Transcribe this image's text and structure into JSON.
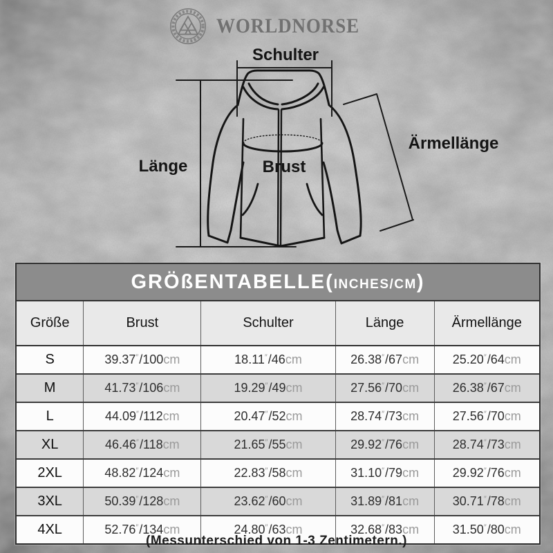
{
  "brand": {
    "name": "WORLDNORSE",
    "logo_icon": "valknut-knot-ring"
  },
  "diagram": {
    "labels": {
      "shoulder": "Schulter",
      "length": "Länge",
      "chest": "Brust",
      "sleeve": "Ärmellänge"
    }
  },
  "size_table": {
    "title_main": "GRÖßENTABELLE(",
    "title_unit": "INCHES/CM",
    "title_close": ")",
    "unit_inch_mark": "″",
    "unit_cm": "cm",
    "headers": [
      "Größe",
      "Brust",
      "Schulter",
      "Länge",
      "Ärmellänge"
    ],
    "rows": [
      {
        "size": "S",
        "measurements": [
          {
            "in": "39.37",
            "cm": "100"
          },
          {
            "in": "18.11",
            "cm": "46"
          },
          {
            "in": "26.38",
            "cm": "67"
          },
          {
            "in": "25.20",
            "cm": "64"
          }
        ]
      },
      {
        "size": "M",
        "measurements": [
          {
            "in": "41.73",
            "cm": "106"
          },
          {
            "in": "19.29",
            "cm": "49"
          },
          {
            "in": "27.56",
            "cm": "70"
          },
          {
            "in": "26.38",
            "cm": "67"
          }
        ]
      },
      {
        "size": "L",
        "measurements": [
          {
            "in": "44.09",
            "cm": "112"
          },
          {
            "in": "20.47",
            "cm": "52"
          },
          {
            "in": "28.74",
            "cm": "73"
          },
          {
            "in": "27.56",
            "cm": "70"
          }
        ]
      },
      {
        "size": "XL",
        "measurements": [
          {
            "in": "46.46",
            "cm": "118"
          },
          {
            "in": "21.65",
            "cm": "55"
          },
          {
            "in": "29.92",
            "cm": "76"
          },
          {
            "in": "28.74",
            "cm": "73"
          }
        ]
      },
      {
        "size": "2XL",
        "measurements": [
          {
            "in": "48.82",
            "cm": "124"
          },
          {
            "in": "22.83",
            "cm": "58"
          },
          {
            "in": "31.10",
            "cm": "79"
          },
          {
            "in": "29.92",
            "cm": "76"
          }
        ]
      },
      {
        "size": "3XL",
        "measurements": [
          {
            "in": "50.39",
            "cm": "128"
          },
          {
            "in": "23.62",
            "cm": "60"
          },
          {
            "in": "31.89",
            "cm": "81"
          },
          {
            "in": "30.71",
            "cm": "78"
          }
        ]
      },
      {
        "size": "4XL",
        "measurements": [
          {
            "in": "52.76",
            "cm": "134"
          },
          {
            "in": "24.80",
            "cm": "63"
          },
          {
            "in": "32.68",
            "cm": "83"
          },
          {
            "in": "31.50",
            "cm": "80"
          }
        ]
      }
    ]
  },
  "footnote": "(Messunterschied von 1-3 Zentimetern.)",
  "colors": {
    "background_gray": "#b3b3b3",
    "title_bar_gray": "#8c8c8c",
    "header_row_gray": "#e9e9e9",
    "row_white": "#fcfcfc",
    "row_alt_gray": "#d9d9d9",
    "table_border": "#2f2f2f",
    "ink_black": "#141414",
    "unit_gray": "#9a9a9a",
    "brand_gray": "#717171",
    "title_text": "#ffffff"
  },
  "chart_data": {
    "type": "table",
    "title": "GRÖßENTABELLE(INCHES/CM)",
    "columns": [
      "Größe",
      "Brust",
      "Schulter",
      "Länge",
      "Ärmellänge"
    ],
    "rows": [
      [
        "S",
        "39.37″/100cm",
        "18.11″/46cm",
        "26.38″/67cm",
        "25.20″/64cm"
      ],
      [
        "M",
        "41.73″/106cm",
        "19.29″/49cm",
        "27.56″/70cm",
        "26.38″/67cm"
      ],
      [
        "L",
        "44.09″/112cm",
        "20.47″/52cm",
        "28.74″/73cm",
        "27.56″/70cm"
      ],
      [
        "XL",
        "46.46″/118cm",
        "21.65″/55cm",
        "29.92″/76cm",
        "28.74″/73cm"
      ],
      [
        "2XL",
        "48.82″/124cm",
        "22.83″/58cm",
        "31.10″/79cm",
        "29.92″/76cm"
      ],
      [
        "3XL",
        "50.39″/128cm",
        "23.62″/60cm",
        "31.89″/81cm",
        "30.71″/78cm"
      ],
      [
        "4XL",
        "52.76″/134cm",
        "24.80″/63cm",
        "32.68″/83cm",
        "31.50″/80cm"
      ]
    ],
    "note": "(Messunterschied von 1-3 Zentimetern.)"
  }
}
